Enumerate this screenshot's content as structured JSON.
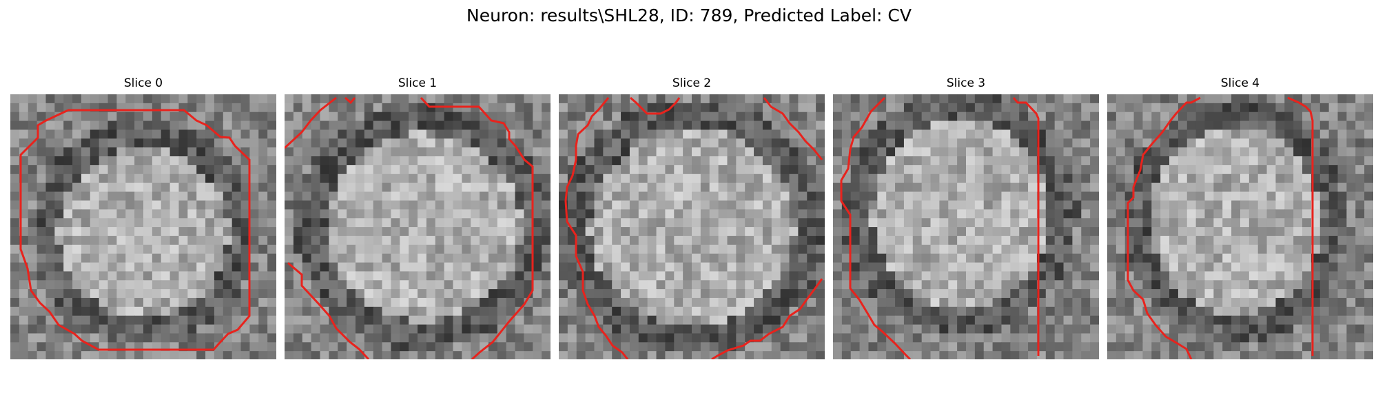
{
  "figure": {
    "title": "Neuron: results\\SHL28, ID: 789, Predicted Label: CV"
  },
  "colors": {
    "contour": "#e8231d",
    "background": "#ffffff"
  },
  "panels": [
    {
      "label": "Slice 0"
    },
    {
      "label": "Slice 1"
    },
    {
      "label": "Slice 2"
    },
    {
      "label": "Slice 3"
    },
    {
      "label": "Slice 4"
    }
  ]
}
